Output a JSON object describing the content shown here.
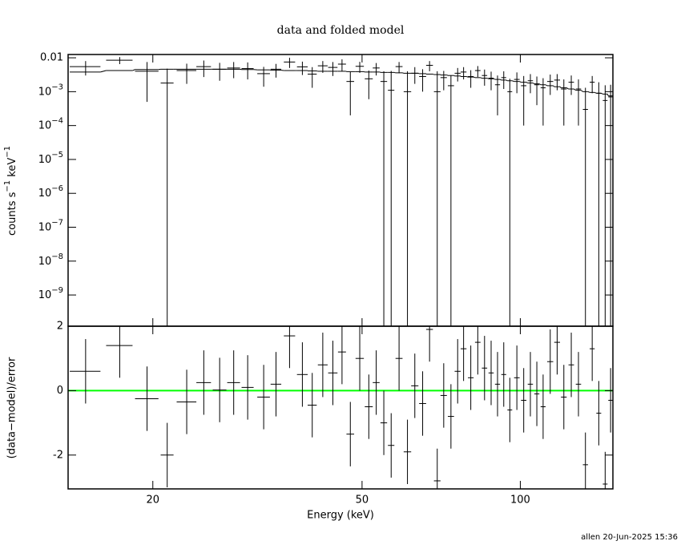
{
  "chart_data": [
    {
      "type": "errorbar",
      "title": "data and folded model",
      "ylabel_parts": [
        "counts s",
        "−1",
        " keV",
        "−1"
      ],
      "xlog": true,
      "ylog": true,
      "xlim": [
        13.8,
        150
      ],
      "ylim": [
        1.2e-10,
        0.0125
      ],
      "xticks": [
        20,
        50,
        100
      ],
      "yticks": [
        0.01,
        {
          "value": 0.001,
          "label": "10",
          "power": "−3"
        },
        {
          "value": 0.0001,
          "label": "10",
          "power": "−4"
        },
        {
          "value": 1e-05,
          "label": "10",
          "power": "−5"
        },
        {
          "value": 1e-06,
          "label": "10",
          "power": "−6"
        },
        {
          "value": 1e-07,
          "label": "10",
          "power": "−7"
        },
        {
          "value": 1e-08,
          "label": "10",
          "power": "−8"
        },
        {
          "value": 1e-09,
          "label": "10",
          "power": "−9"
        }
      ],
      "color": "#000000",
      "model_color": "#000000",
      "x": [
        14.9,
        17.3,
        19.5,
        21.3,
        23.2,
        25.0,
        26.8,
        28.5,
        30.3,
        32.5,
        34.3,
        36.4,
        38.5,
        40.2,
        42.1,
        44.0,
        45.8,
        47.5,
        49.5,
        51.5,
        53.2,
        55.0,
        56.8,
        58.8,
        61.0,
        63.0,
        65.2,
        67.2,
        69.5,
        71.5,
        73.8,
        76.0,
        78.0,
        80.5,
        83.0,
        85.5,
        88.0,
        90.5,
        93.0,
        95.5,
        98.5,
        101.5,
        104.5,
        107.5,
        110.5,
        114,
        117.5,
        121,
        125,
        129,
        133,
        137,
        141,
        145,
        148.5
      ],
      "x_err": [
        1.0,
        1.0,
        1.0,
        0.6,
        1.0,
        0.8,
        0.8,
        0.8,
        0.8,
        0.9,
        0.8,
        0.9,
        0.9,
        0.8,
        0.9,
        0.9,
        0.8,
        0.8,
        0.9,
        0.9,
        0.8,
        0.8,
        0.8,
        0.9,
        1.0,
        1.0,
        1.0,
        1.0,
        1.0,
        1.0,
        1.0,
        1.0,
        1.0,
        1.0,
        1.0,
        1.0,
        1.0,
        1.0,
        1.0,
        1.0,
        1.2,
        1.2,
        1.2,
        1.2,
        1.2,
        1.5,
        1.5,
        1.5,
        1.5,
        1.5,
        1.5,
        1.5,
        1.5,
        1.5,
        1.5
      ],
      "values": [
        0.0055,
        0.0085,
        0.004,
        0.0018,
        0.0042,
        0.0055,
        0.0046,
        0.005,
        0.0048,
        0.0034,
        0.0046,
        0.0075,
        0.0054,
        0.0033,
        0.0058,
        0.0052,
        0.0065,
        0.002,
        0.0056,
        0.0024,
        0.005,
        0.002,
        0.0011,
        0.0055,
        0.001,
        0.0035,
        0.0028,
        0.006,
        0.001,
        0.0026,
        0.0015,
        0.0035,
        0.0038,
        0.0028,
        0.0042,
        0.003,
        0.0025,
        0.0016,
        0.0026,
        0.001,
        0.0023,
        0.0015,
        0.0021,
        0.0016,
        0.0013,
        0.002,
        0.0022,
        0.0012,
        0.0019,
        0.0012,
        0.0003,
        0.0019,
        0.0009,
        0.00055,
        0.0007
      ],
      "errors": [
        0.0025,
        0.002,
        0.0035,
        0.003,
        0.0025,
        0.0028,
        0.0025,
        0.0025,
        0.0025,
        0.002,
        0.002,
        0.0025,
        0.0023,
        0.002,
        0.0022,
        0.0023,
        0.0025,
        0.0018,
        0.002,
        0.0018,
        0.002,
        0.002,
        0.003,
        0.002,
        0.003,
        0.0018,
        0.0018,
        0.002,
        0.003,
        0.0015,
        0.0015,
        0.0015,
        0.0015,
        0.0015,
        0.0015,
        0.0015,
        0.0014,
        0.0014,
        0.0014,
        0.0014,
        0.0014,
        0.0014,
        0.0012,
        0.0012,
        0.0012,
        0.0012,
        0.0011,
        0.0011,
        0.0011,
        0.0011,
        0.001,
        0.001,
        0.001,
        0.001,
        0.0009
      ],
      "model": [
        0.0038,
        0.0042,
        0.0045,
        0.0046,
        0.0046,
        0.0046,
        0.0046,
        0.0046,
        0.0045,
        0.0044,
        0.0043,
        0.0042,
        0.0042,
        0.0041,
        0.004,
        0.004,
        0.004,
        0.0039,
        0.0039,
        0.0038,
        0.0038,
        0.0037,
        0.0037,
        0.0036,
        0.0035,
        0.0035,
        0.0034,
        0.0033,
        0.0032,
        0.0031,
        0.003,
        0.0029,
        0.0028,
        0.0027,
        0.0026,
        0.0025,
        0.0024,
        0.0023,
        0.0022,
        0.0021,
        0.002,
        0.0019,
        0.0018,
        0.0017,
        0.0016,
        0.0015,
        0.0014,
        0.0013,
        0.0012,
        0.0011,
        0.001,
        0.00095,
        0.0009,
        0.00085,
        0.00075
      ]
    },
    {
      "type": "errorbar",
      "ylabel": "(data−model)/error",
      "xlabel": "Energy (keV)",
      "xlog": true,
      "ylog": false,
      "xlim": [
        13.8,
        150
      ],
      "ylim": [
        -3.05,
        2
      ],
      "xticks": [
        20,
        50,
        100
      ],
      "yticks": [
        -2,
        0,
        2
      ],
      "color": "#000000",
      "reference_line": {
        "value": 0,
        "color": "#00ff00"
      },
      "x": [
        14.9,
        17.3,
        19.5,
        21.3,
        23.2,
        25.0,
        26.8,
        28.5,
        30.3,
        32.5,
        34.3,
        36.4,
        38.5,
        40.2,
        42.1,
        44.0,
        45.8,
        47.5,
        49.5,
        51.5,
        53.2,
        55.0,
        56.8,
        58.8,
        61.0,
        63.0,
        65.2,
        67.2,
        69.5,
        71.5,
        73.8,
        76.0,
        78.0,
        80.5,
        83.0,
        85.5,
        88.0,
        90.5,
        93.0,
        95.5,
        98.5,
        101.5,
        104.5,
        107.5,
        110.5,
        114,
        117.5,
        121,
        125,
        129,
        133,
        137,
        141,
        145,
        148.5
      ],
      "x_err": [
        1.0,
        1.0,
        1.0,
        0.6,
        1.0,
        0.8,
        0.8,
        0.8,
        0.8,
        0.9,
        0.8,
        0.9,
        0.9,
        0.8,
        0.9,
        0.9,
        0.8,
        0.8,
        0.9,
        0.9,
        0.8,
        0.8,
        0.8,
        0.9,
        1.0,
        1.0,
        1.0,
        1.0,
        1.0,
        1.0,
        1.0,
        1.0,
        1.0,
        1.0,
        1.0,
        1.0,
        1.0,
        1.0,
        1.0,
        1.0,
        1.2,
        1.2,
        1.2,
        1.2,
        1.2,
        1.5,
        1.5,
        1.5,
        1.5,
        1.5,
        1.5,
        1.5,
        1.5,
        1.5,
        1.5
      ],
      "values": [
        0.6,
        1.4,
        -0.25,
        -2.0,
        -0.35,
        0.25,
        0.02,
        0.25,
        0.1,
        -0.2,
        0.2,
        1.7,
        0.5,
        -0.45,
        0.8,
        0.55,
        1.2,
        -1.35,
        1.0,
        -0.5,
        0.25,
        -1.0,
        -1.7,
        1.0,
        -1.9,
        0.15,
        -0.4,
        1.9,
        -2.8,
        -0.15,
        -0.8,
        0.6,
        1.3,
        0.4,
        1.5,
        0.7,
        0.55,
        0.2,
        0.5,
        -0.6,
        0.4,
        -0.3,
        0.2,
        -0.1,
        -0.5,
        0.9,
        1.5,
        -0.2,
        0.8,
        0.2,
        -2.3,
        1.3,
        -0.7,
        -2.9,
        -0.3
      ],
      "errors": [
        1,
        1,
        1,
        1,
        1,
        1,
        1,
        1,
        1,
        1,
        1,
        1,
        1,
        1,
        1,
        1,
        1,
        1,
        1,
        1,
        1,
        1,
        1,
        1,
        1,
        1,
        1,
        1,
        1,
        1,
        1,
        1,
        1,
        1,
        1,
        1,
        1,
        1,
        1,
        1,
        1,
        1,
        1,
        1,
        1,
        1,
        1,
        1,
        1,
        1,
        1,
        1,
        1,
        1,
        1
      ]
    }
  ],
  "footer": "allen 20-Jun-2025 15:36"
}
